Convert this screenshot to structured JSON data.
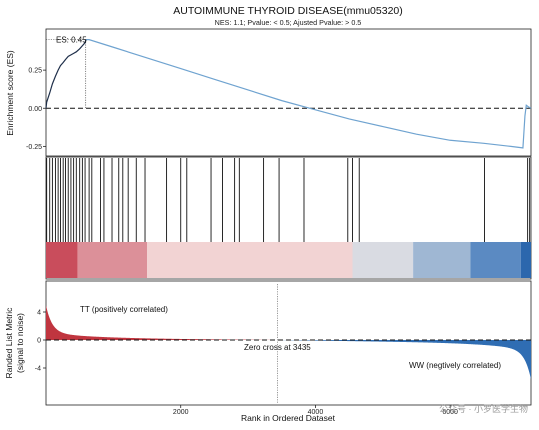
{
  "chart_data": {
    "type": "line",
    "title": "AUTOIMMUNE THYROID DISEASE(mmu05320)",
    "subtitle": "NES: 1.1;  Pvalue: < 0.5;  Ajusted Pvalue: > 0.5",
    "es_label": "ES: 0.45",
    "es_peak": {
      "rank": 590,
      "es": 0.45
    },
    "n_genes": 7200,
    "xlim": [
      0,
      7200
    ],
    "x_ticks": [
      2000,
      4000,
      6000
    ],
    "x_tick_labels": [
      "2000",
      "4000",
      "6000"
    ],
    "xlabel": "Rank in Ordered Dataset",
    "es_panel": {
      "ylabel": "Enrichment score (ES)",
      "ylim": [
        -0.3,
        0.5
      ],
      "y_ticks": [
        0.25,
        0.0,
        -0.25
      ],
      "y_tick_labels": [
        "0.25",
        "0.00",
        "-0.25"
      ],
      "line_color": "#6fa3d0",
      "early_color": "#1f2f4a"
    },
    "metric_panel": {
      "ylabel_line1": "Randed List Metric",
      "ylabel_line2": "(signal to noise)",
      "ylim": [
        -9,
        8
      ],
      "y_ticks": [
        4,
        0,
        -4
      ],
      "y_tick_labels": [
        "4",
        "0",
        "-4"
      ],
      "positive_label": "TT (positively correlated)",
      "negative_label": "WW (negtively correlated)",
      "zero_cross_label": "Zero cross at 3435",
      "zero_cross": 3435,
      "positive_color": "#c0353f",
      "negative_color": "#2f6db3"
    },
    "gene_hits": [
      10,
      55,
      95,
      140,
      180,
      215,
      255,
      290,
      330,
      370,
      410,
      450,
      500,
      540,
      580,
      640,
      680,
      810,
      860,
      980,
      1080,
      1140,
      1220,
      1340,
      1470,
      1790,
      2000,
      2090,
      2450,
      2620,
      2800,
      2870,
      3230,
      3460,
      3830,
      4480,
      4550,
      4650,
      6510,
      7150,
      7180
    ],
    "es_curve": [
      [
        0,
        0.0
      ],
      [
        10,
        0.04
      ],
      [
        55,
        0.1
      ],
      [
        95,
        0.16
      ],
      [
        140,
        0.21
      ],
      [
        180,
        0.25
      ],
      [
        215,
        0.28
      ],
      [
        255,
        0.3
      ],
      [
        290,
        0.32
      ],
      [
        330,
        0.34
      ],
      [
        370,
        0.35
      ],
      [
        410,
        0.36
      ],
      [
        450,
        0.37
      ],
      [
        500,
        0.39
      ],
      [
        540,
        0.41
      ],
      [
        580,
        0.43
      ],
      [
        590,
        0.45
      ],
      [
        640,
        0.45
      ],
      [
        1000,
        0.4
      ],
      [
        1500,
        0.33
      ],
      [
        2000,
        0.26
      ],
      [
        2500,
        0.19
      ],
      [
        3000,
        0.12
      ],
      [
        3500,
        0.05
      ],
      [
        4000,
        -0.01
      ],
      [
        4500,
        -0.07
      ],
      [
        5000,
        -0.12
      ],
      [
        5500,
        -0.17
      ],
      [
        6000,
        -0.21
      ],
      [
        6500,
        -0.23
      ],
      [
        6900,
        -0.25
      ],
      [
        7080,
        -0.26
      ],
      [
        7110,
        -0.05
      ],
      [
        7130,
        0.02
      ],
      [
        7160,
        0.01
      ],
      [
        7200,
        0.0
      ]
    ],
    "color_bands": [
      {
        "from": 0,
        "to": 470,
        "color": "#c94d5c"
      },
      {
        "from": 470,
        "to": 1500,
        "color": "#dc9099"
      },
      {
        "from": 1500,
        "to": 4550,
        "color": "#f2d3d3"
      },
      {
        "from": 4550,
        "to": 5450,
        "color": "#d9dbe2"
      },
      {
        "from": 5450,
        "to": 6300,
        "color": "#9fb7d3"
      },
      {
        "from": 6300,
        "to": 7050,
        "color": "#5b8ac2"
      },
      {
        "from": 7050,
        "to": 7200,
        "color": "#2c67ad"
      }
    ]
  },
  "watermark": "公众号 · 小罗医学生物"
}
